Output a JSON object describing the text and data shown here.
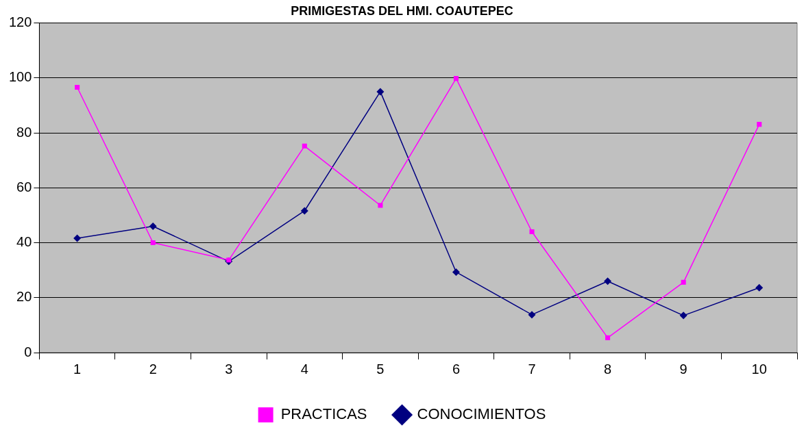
{
  "chart_data": {
    "type": "line",
    "title": "PRIMIGESTAS DEL HMI. COAUTEPEC",
    "categories": [
      "1",
      "2",
      "3",
      "4",
      "5",
      "6",
      "7",
      "8",
      "9",
      "10"
    ],
    "series": [
      {
        "name": "CONOCIMIENTOS",
        "color": "#000080",
        "marker": "diamond",
        "values": [
          41.6,
          46,
          33.2,
          51.6,
          95,
          29.3,
          13.8,
          26,
          13.5,
          23.6
        ]
      },
      {
        "name": "PRACTICAS",
        "color": "#ff00ff",
        "marker": "square",
        "values": [
          96.6,
          40,
          33.7,
          75.2,
          53.6,
          99.8,
          44,
          5.4,
          25.6,
          83.1
        ]
      }
    ],
    "ylim": [
      0,
      120
    ],
    "yticks": [
      0,
      20,
      40,
      60,
      80,
      100,
      120
    ],
    "grid": "y",
    "legend": "bottom",
    "line_style": "solid"
  }
}
